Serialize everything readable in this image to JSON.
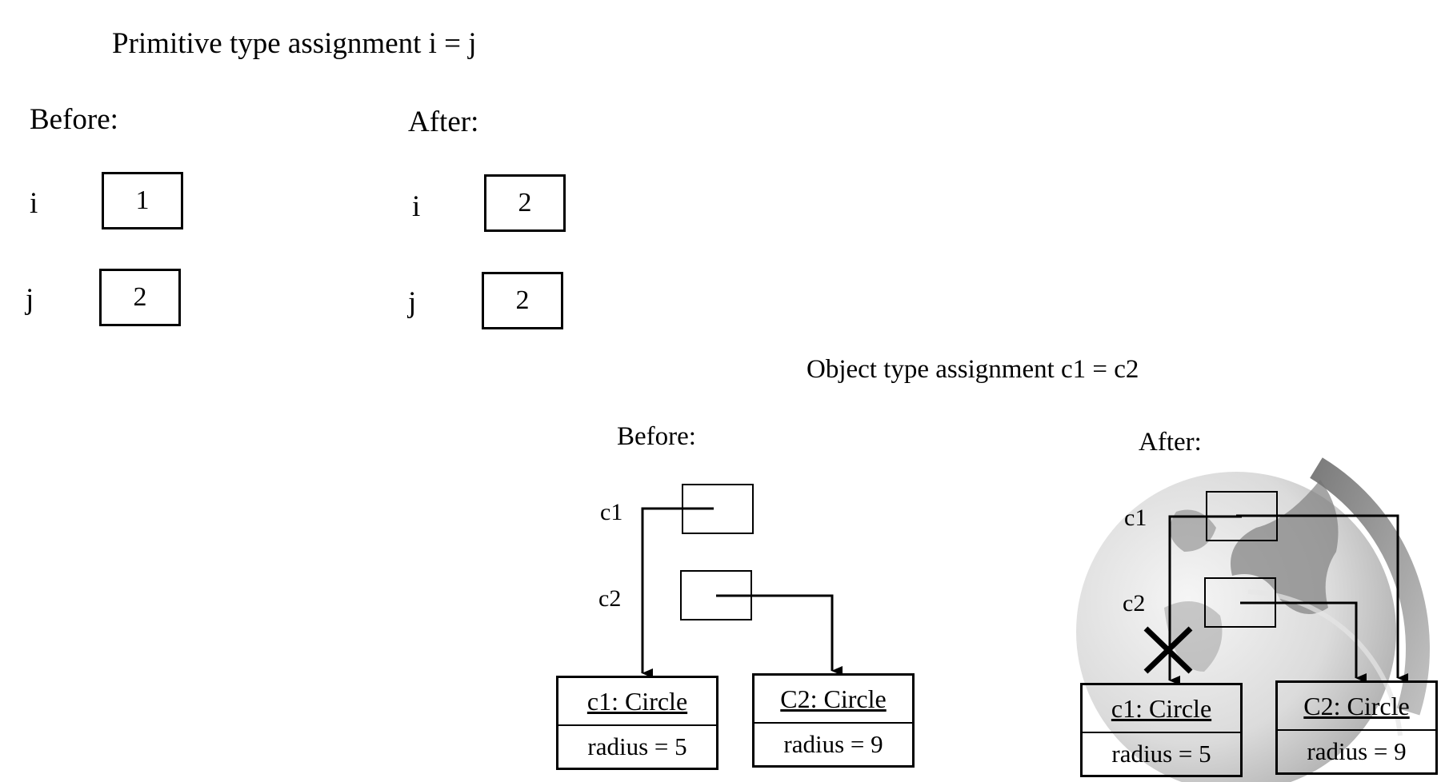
{
  "primitive": {
    "title": "Primitive type assignment  i = j",
    "before": {
      "label": "Before:",
      "vars": [
        {
          "name": "i",
          "value": "1"
        },
        {
          "name": "j",
          "value": "2"
        }
      ]
    },
    "after": {
      "label": "After:",
      "vars": [
        {
          "name": "i",
          "value": "2"
        },
        {
          "name": "j",
          "value": "2"
        }
      ]
    }
  },
  "object": {
    "title": "Object type assignment c1 = c2",
    "before": {
      "label": "Before:",
      "refs": [
        {
          "name": "c1"
        },
        {
          "name": "c2"
        }
      ],
      "objects": [
        {
          "title": "c1: Circle",
          "field": "radius = 5"
        },
        {
          "title": "C2: Circle",
          "field": "radius = 9"
        }
      ]
    },
    "after": {
      "label": "After:",
      "refs": [
        {
          "name": "c1"
        },
        {
          "name": "c2"
        }
      ],
      "objects": [
        {
          "title": "c1: Circle",
          "field": "radius = 5"
        },
        {
          "title": "C2: Circle",
          "field": "radius = 9"
        }
      ]
    }
  },
  "colors": {
    "stroke": "#000000",
    "watermark_dark": "#7a7a7a",
    "watermark_light": "#d9d9d9"
  }
}
